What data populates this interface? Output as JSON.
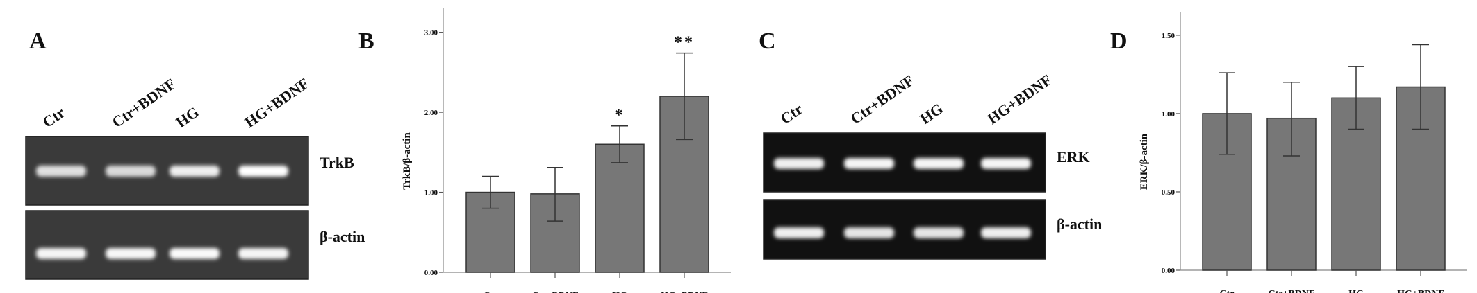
{
  "panels": {
    "A": {
      "letter": "A",
      "lanes": [
        "Ctr",
        "Ctr+BDNF",
        "HG",
        "HG+BDNF"
      ],
      "rows": [
        {
          "label": "TrkB",
          "band_intensity": [
            0.7,
            0.65,
            0.85,
            1.0
          ]
        },
        {
          "label": "β-actin",
          "band_intensity": [
            0.9,
            0.92,
            0.95,
            0.9
          ]
        }
      ],
      "gel_color": "#3a3a3a"
    },
    "C": {
      "letter": "C",
      "lanes": [
        "Ctr",
        "Ctr+BDNF",
        "HG",
        "HG+BDNF"
      ],
      "rows": [
        {
          "label": "ERK",
          "band_intensity": [
            0.85,
            0.9,
            0.9,
            0.9
          ]
        },
        {
          "label": "β-actin",
          "band_intensity": [
            0.85,
            0.75,
            0.75,
            0.85
          ]
        }
      ],
      "gel_color": "#111111"
    },
    "B": {
      "letter": "B"
    },
    "D": {
      "letter": "D"
    }
  },
  "chart_data": [
    {
      "panel": "B",
      "type": "bar",
      "categories": [
        "Ctr",
        "Ctr+BDNF",
        "HG",
        "HG+BDNF"
      ],
      "values": [
        1.0,
        0.98,
        1.6,
        2.2
      ],
      "error_low": [
        0.8,
        0.64,
        1.37,
        1.66
      ],
      "error_high": [
        1.2,
        1.31,
        1.83,
        2.74
      ],
      "annotations": [
        "",
        "",
        "*",
        "**"
      ],
      "ylabel": "TrkB/β-actin",
      "xlabel": "",
      "yticks": [
        "0.00",
        "1.00",
        "2.00",
        "3.00"
      ],
      "ytick_values": [
        0,
        1,
        2,
        3
      ],
      "ylim": [
        0,
        3.3
      ],
      "bar_color": "#777777",
      "grid": false
    },
    {
      "panel": "D",
      "type": "bar",
      "categories": [
        "Ctr",
        "Ctr+BDNF",
        "HG",
        "HG+BDNF"
      ],
      "values": [
        1.0,
        0.97,
        1.1,
        1.17
      ],
      "error_low": [
        0.74,
        0.73,
        0.9,
        0.9
      ],
      "error_high": [
        1.26,
        1.2,
        1.3,
        1.44
      ],
      "annotations": [
        "",
        "",
        "",
        ""
      ],
      "ylabel": "ERK/β-actin",
      "xlabel": "",
      "yticks": [
        "0.00",
        "0.50",
        "1.00",
        "1.50"
      ],
      "ytick_values": [
        0,
        0.5,
        1.0,
        1.5
      ],
      "ylim": [
        0,
        1.65
      ],
      "bar_color": "#777777",
      "grid": false
    }
  ]
}
